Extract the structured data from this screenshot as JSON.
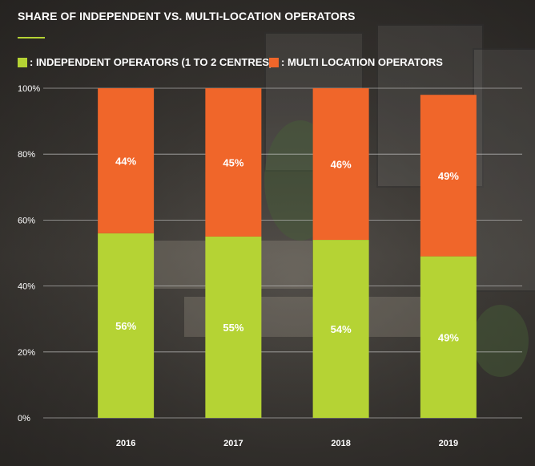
{
  "chart_data": {
    "type": "bar",
    "stacked": true,
    "title": "SHARE OF INDEPENDENT VS. MULTI-LOCATION OPERATORS",
    "categories": [
      "2016",
      "2017",
      "2018",
      "2019"
    ],
    "series": [
      {
        "name": ": INDEPENDENT OPERATORS (1 TO 2 CENTRES)",
        "values": [
          56,
          55,
          54,
          49
        ],
        "labels": [
          "56%",
          "55%",
          "54%",
          "49%"
        ],
        "color": "#b5d334"
      },
      {
        "name": ": MULTI LOCATION OPERATORS",
        "values": [
          44,
          45,
          46,
          49
        ],
        "labels": [
          "44%",
          "45%",
          "46%",
          "49%"
        ],
        "color": "#f0662a"
      }
    ],
    "yticks": [
      0,
      20,
      40,
      60,
      80,
      100
    ],
    "ytick_labels": [
      "0%",
      "20%",
      "40%",
      "60%",
      "80%",
      "100%"
    ],
    "ylim": [
      0,
      100
    ],
    "grid": true,
    "legend_position": "top-left",
    "xlabel": "",
    "ylabel": ""
  },
  "colors": {
    "text": "#ffffff",
    "grid": "#cfcfcf",
    "accent_rule": "#b5d334"
  }
}
